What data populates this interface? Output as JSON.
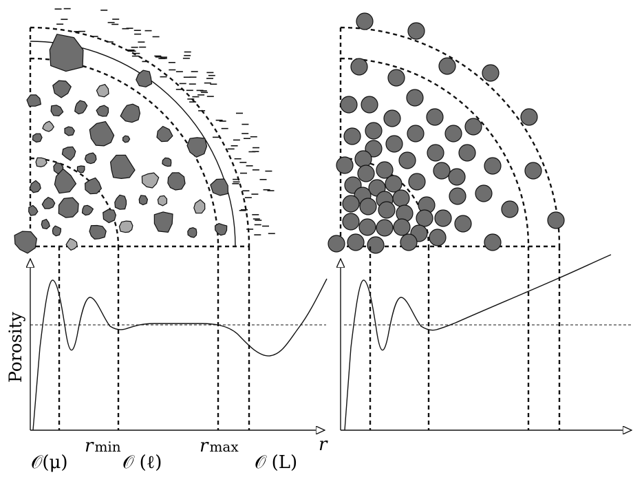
{
  "y_axis_label": "Porosity",
  "x_axis_label": "r",
  "x_ticks": [
    {
      "main": "𝒪(μ)"
    },
    {
      "main": "r",
      "sub": "min"
    },
    {
      "main": "𝒪 (ℓ)"
    },
    {
      "main": "r",
      "sub": "max"
    },
    {
      "main": "𝒪 (L)"
    }
  ],
  "colors": {
    "particle_dark": "#6e6e6e",
    "particle_light": "#aaaaaa",
    "stroke": "#111111"
  }
}
